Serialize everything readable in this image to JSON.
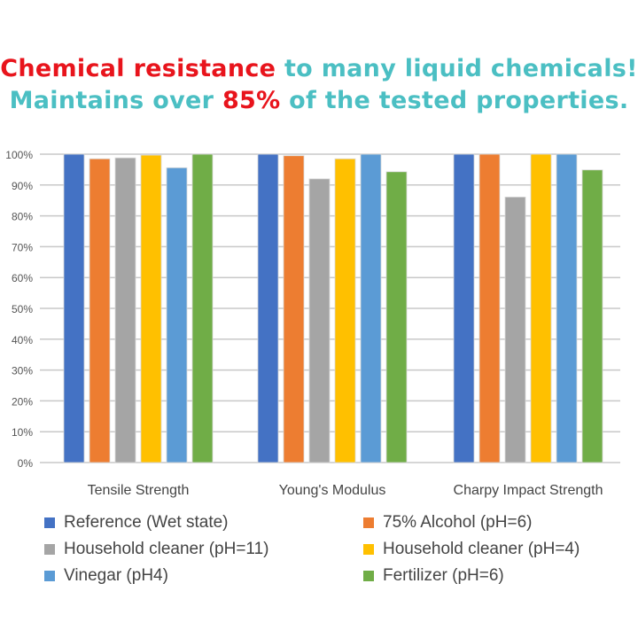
{
  "title": {
    "line1_red": "Chemical resistance",
    "line1_rest": " to many liquid chemicals!",
    "line2_pre": "Maintains over ",
    "line2_red": "85%",
    "line2_post": " of the tested properties."
  },
  "chart_data": {
    "type": "bar",
    "categories": [
      "Tensile Strength",
      "Young's Modulus",
      "Charpy Impact Strength"
    ],
    "ylim": [
      0,
      100
    ],
    "yticks": [
      "0%",
      "10%",
      "20%",
      "30%",
      "40%",
      "50%",
      "60%",
      "70%",
      "80%",
      "90%",
      "100%"
    ],
    "grid": true,
    "legend_position": "bottom",
    "series": [
      {
        "name": "Reference (Wet state)",
        "color": "#4472c4",
        "values": [
          100,
          100,
          100
        ]
      },
      {
        "name": "75% Alcohol (pH=6)",
        "color": "#ed7d31",
        "values": [
          98.5,
          99.5,
          100
        ]
      },
      {
        "name": "Household cleaner (pH=11)",
        "color": "#a5a5a5",
        "values": [
          98.8,
          92.0,
          86.1
        ]
      },
      {
        "name": "Household cleaner (pH=4)",
        "color": "#ffc000",
        "values": [
          99.7,
          98.5,
          100
        ]
      },
      {
        "name": "Vinegar (pH4)",
        "color": "#5b9bd5",
        "values": [
          95.6,
          100,
          100
        ]
      },
      {
        "name": "Fertilizer (pH=6)",
        "color": "#70ad47",
        "values": [
          100,
          94.3,
          94.9
        ]
      }
    ]
  }
}
